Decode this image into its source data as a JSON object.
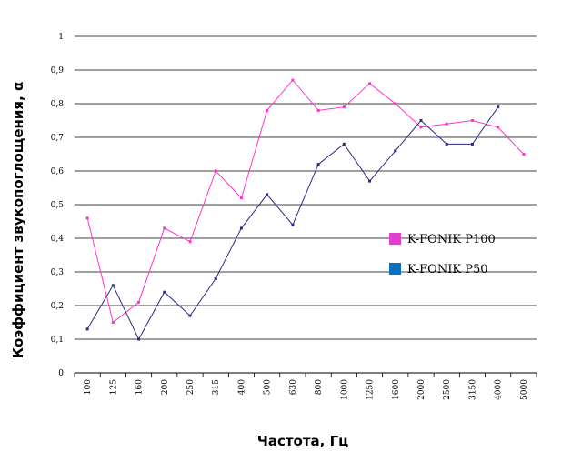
{
  "chart_data": {
    "type": "line",
    "xlabel": "Частота, Гц",
    "ylabel": "Коэффициент звукопоглощения, α",
    "categories": [
      "100",
      "125",
      "160",
      "200",
      "250",
      "315",
      "400",
      "500",
      "630",
      "800",
      "1000",
      "1250",
      "1600",
      "2000",
      "2500",
      "3150",
      "4000",
      "5000"
    ],
    "yticks": [
      "0",
      "0,1",
      "0,2",
      "0,3",
      "0,4",
      "0,5",
      "0,6",
      "0,7",
      "0,8",
      "0,9",
      "1"
    ],
    "ylim": [
      0,
      1
    ],
    "grid": "horizontal",
    "legend_position": "right",
    "series": [
      {
        "name": "K-FONIK P100",
        "color": "#ff33cc",
        "legend_color": "#e040d0",
        "values": [
          0.46,
          0.15,
          0.21,
          0.43,
          0.39,
          0.6,
          0.52,
          0.78,
          0.87,
          0.78,
          0.79,
          0.86,
          0.8,
          0.73,
          0.74,
          0.75,
          0.73,
          0.65
        ]
      },
      {
        "name": "K-FONIK P50",
        "color": "#2a2a8c",
        "legend_color": "#0b6fbf",
        "values": [
          0.13,
          0.26,
          0.1,
          0.24,
          0.17,
          0.28,
          0.43,
          0.53,
          0.44,
          0.62,
          0.68,
          0.57,
          0.66,
          0.75,
          0.68,
          0.68,
          0.79,
          null
        ]
      }
    ]
  }
}
